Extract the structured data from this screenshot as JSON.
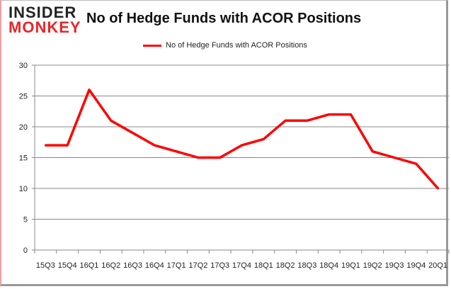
{
  "logo": {
    "line1": "INSIDER",
    "line2": "MONKEY"
  },
  "chart_data": {
    "type": "line",
    "title": "No of Hedge Funds with ACOR Positions",
    "categories": [
      "15Q3",
      "15Q4",
      "16Q1",
      "16Q2",
      "16Q3",
      "16Q4",
      "17Q1",
      "17Q2",
      "17Q3",
      "17Q4",
      "18Q1",
      "18Q2",
      "18Q3",
      "18Q4",
      "19Q1",
      "19Q2",
      "19Q3",
      "19Q4",
      "20Q1"
    ],
    "series": [
      {
        "name": "No of Hedge Funds with ACOR Positions",
        "values": [
          17,
          17,
          26,
          21,
          19,
          17,
          16,
          15,
          15,
          17,
          18,
          21,
          21,
          22,
          22,
          16,
          15,
          14,
          10
        ],
        "color": "#ff0000"
      }
    ],
    "ylim": [
      0,
      30
    ],
    "yticks": [
      0,
      5,
      10,
      15,
      20,
      25,
      30
    ],
    "grid": true,
    "legend": "top-center",
    "xlabel": "",
    "ylabel": ""
  }
}
